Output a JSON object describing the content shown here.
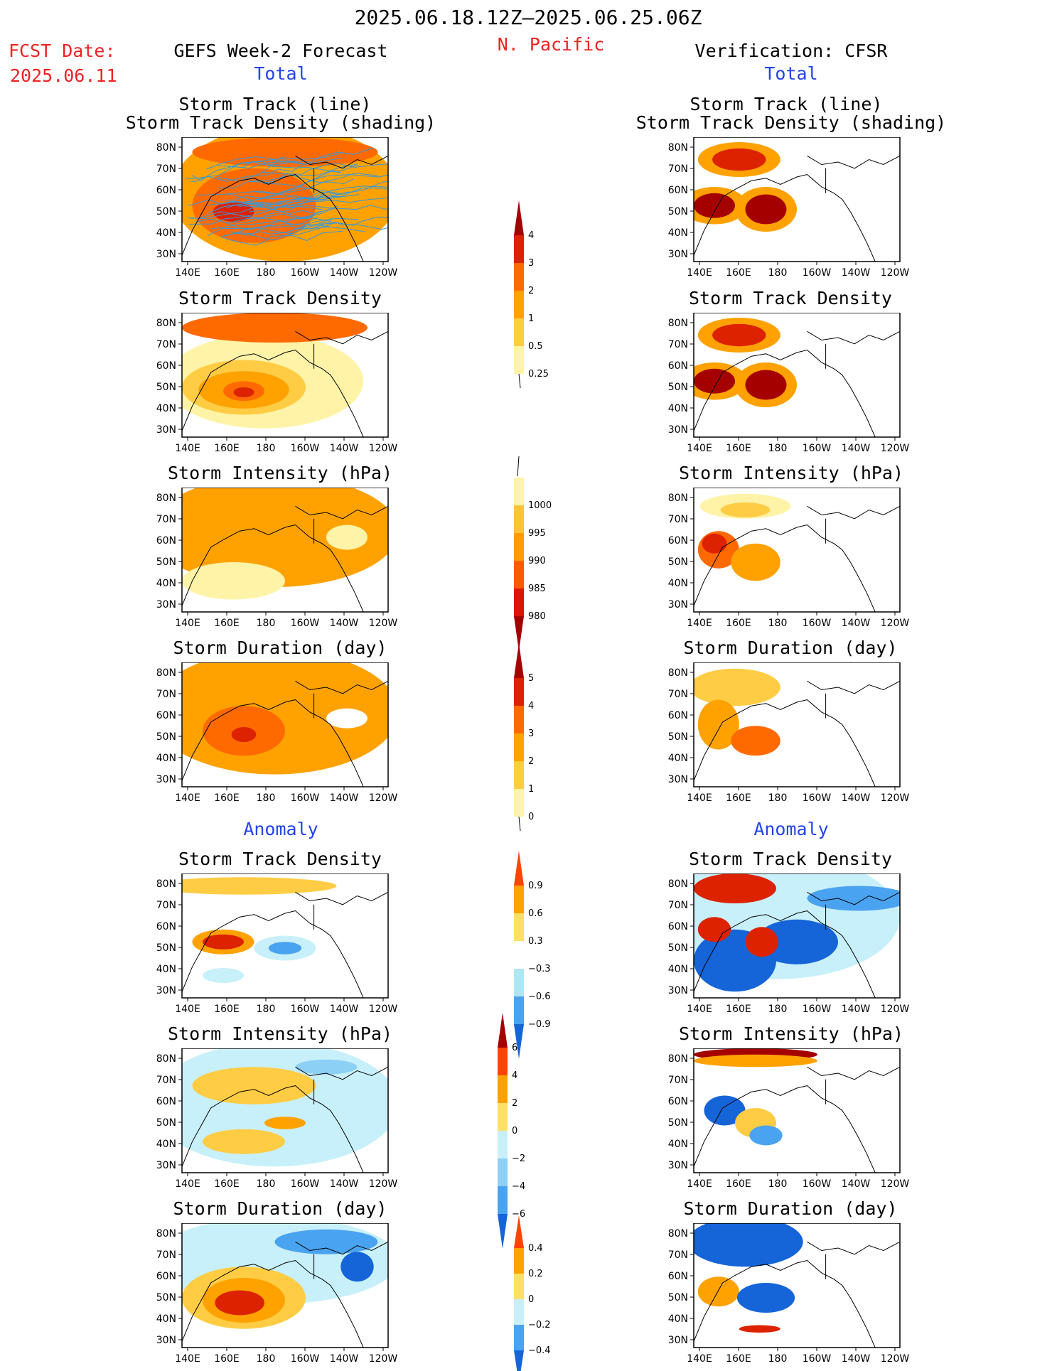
{
  "header": {
    "date_range": "2025.06.18.12Z–2025.06.25.06Z",
    "region": "N. Pacific",
    "fcst_label": "FCST Date:",
    "fcst_date": "2025.06.11",
    "left_title": "GEFS Week-2 Forecast",
    "right_title": "Verification: CFSR",
    "total_label": "Total",
    "anomaly_label": "Anomaly"
  },
  "axis": {
    "lat_ticks": [
      "80N",
      "70N",
      "60N",
      "50N",
      "40N",
      "30N"
    ],
    "lon_ticks": [
      "140E",
      "160E",
      "180",
      "160W",
      "140W",
      "120W"
    ]
  },
  "panel_titles": {
    "track_line": "Storm Track (line)",
    "track_shading": "Storm Track Density (shading)",
    "density": "Storm Track Density",
    "intensity": "Storm Intensity (hPa)",
    "duration": "Storm Duration (day)"
  },
  "colorbars": {
    "density_total": {
      "labels": [
        "4",
        "3",
        "2",
        "1",
        "0.5",
        "0.25"
      ],
      "colors": [
        "#a50000",
        "#dd2200",
        "#ff6a00",
        "#ffa200",
        "#ffcc44",
        "#fff3a8"
      ]
    },
    "intensity_total": {
      "labels": [
        "1000",
        "995",
        "990",
        "985",
        "980"
      ],
      "colors": [
        "#fff3a8",
        "#ffc23b",
        "#ff9c00",
        "#ff5a00",
        "#dd1500",
        "#a50000"
      ]
    },
    "duration_total": {
      "labels": [
        "5",
        "4",
        "3",
        "2",
        "1",
        "0"
      ],
      "colors": [
        "#a50000",
        "#dd2200",
        "#ff6a00",
        "#ffa200",
        "#ffcc44",
        "#fff3a8"
      ]
    },
    "density_anom": {
      "labels": [
        "0.9",
        "0.6",
        "0.3",
        "−0.3",
        "−0.6",
        "−0.9"
      ],
      "colors": [
        "#ff4400",
        "#ffa200",
        "#ffe066",
        "#ffffff",
        "#aee6f5",
        "#4aa3f0",
        "#1565d8"
      ]
    },
    "intensity_anom": {
      "labels": [
        "6",
        "4",
        "2",
        "0",
        "−2",
        "−4",
        "−6"
      ],
      "colors": [
        "#a50000",
        "#ff4400",
        "#ffa200",
        "#ffe066",
        "#c8f0fa",
        "#8cd0f5",
        "#4aa3f0",
        "#1565d8"
      ]
    },
    "duration_anom": {
      "labels": [
        "0.4",
        "0.2",
        "0",
        "−0.2",
        "−0.4"
      ],
      "colors": [
        "#ff4400",
        "#ffa200",
        "#ffe066",
        "#c8f0fa",
        "#4aa3f0",
        "#1565d8"
      ]
    }
  }
}
